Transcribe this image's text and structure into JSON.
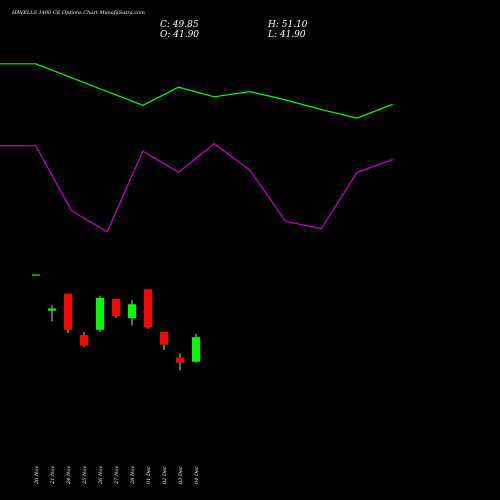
{
  "chart_data": {
    "type": "candlestick",
    "title": "HAVELLS 1400  CE Options  Chart MunafaSutra.com",
    "ohlc": {
      "close_label": "C: 49.85",
      "high_label": "H: 51.10",
      "open_label": "O: 41.90",
      "low_label": "L: 41.90"
    },
    "categories": [
      "20 Nov",
      "21 Nov",
      "24 Nov",
      "25 Nov",
      "26 Nov",
      "27 Nov",
      "28 Nov",
      "01 Dec",
      "02 Dec",
      "03 Dec",
      "04 Dec"
    ],
    "candles": [
      {
        "open": 212,
        "close": 212,
        "high": 212,
        "low": 212,
        "color": "#00ff00"
      },
      {
        "open": 178,
        "close": 180,
        "high": 183,
        "low": 168,
        "color": "#00ff00"
      },
      {
        "open": 160,
        "close": 194,
        "high": 194,
        "low": 157,
        "color": "#ff0000"
      },
      {
        "open": 155,
        "close": 145,
        "high": 158,
        "low": 144,
        "color": "#ff0000"
      },
      {
        "open": 160,
        "close": 190,
        "high": 192,
        "low": 158,
        "color": "#00ff00"
      },
      {
        "open": 189,
        "close": 173,
        "high": 189,
        "low": 171,
        "color": "#ff0000"
      },
      {
        "open": 171,
        "close": 184,
        "high": 188,
        "low": 164,
        "color": "#00ff00"
      },
      {
        "open": 198,
        "close": 162,
        "high": 198,
        "low": 161,
        "color": "#ff0000"
      },
      {
        "open": 158,
        "close": 146,
        "high": 158,
        "low": 141,
        "color": "#ff0000"
      },
      {
        "open": 134,
        "close": 129,
        "high": 138,
        "low": 122,
        "color": "#ff0000"
      },
      {
        "open": 130,
        "close": 153,
        "high": 156,
        "low": 129,
        "color": "#00ff00"
      }
    ],
    "overlay_lines": [
      {
        "color": "#00ff00",
        "values": [
          410,
          410,
          397,
          384,
          371,
          388,
          379,
          384,
          376,
          367,
          359,
          372
        ]
      },
      {
        "color": "#cc00cc",
        "values": [
          333,
          333,
          272,
          252,
          328,
          308,
          335,
          310,
          262,
          255,
          308,
          320
        ]
      }
    ],
    "ylim": [
      0,
      470
    ],
    "grid": false,
    "colors": {
      "background": "#000000",
      "up": "#00ff00",
      "down": "#ff0000",
      "text": "#ffffff"
    }
  }
}
